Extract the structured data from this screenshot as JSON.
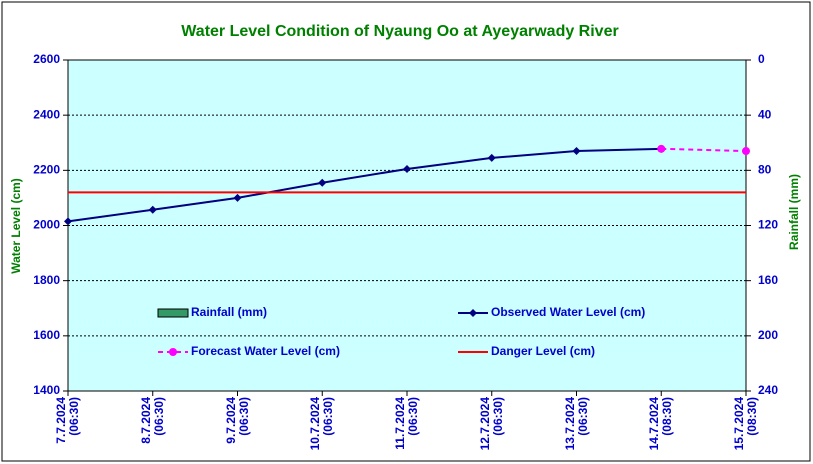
{
  "chart_data": {
    "type": "line",
    "title": "Water Level Condition of Nyaung Oo at Ayeyarwady River",
    "y_label": "Water Level (cm)",
    "y2_label": "Rainfall (mm)",
    "categories": [
      "7.7.2024\n(06:30)",
      "8.7.2024\n(06:30)",
      "9.7.2024\n(06:30)",
      "10.7.2024\n(06:30)",
      "11.7.2024\n(06:30)",
      "12.7.2024\n(06:30)",
      "13.7.2024\n(06:30)",
      "14.7.2024\n(08:30)",
      "15.7.2024\n(08:30)"
    ],
    "series": [
      {
        "name": "Rainfall (mm)",
        "color": "#339966",
        "axis": "y2",
        "kind": "bar",
        "values": [
          null,
          null,
          null,
          null,
          null,
          null,
          null,
          null,
          null
        ]
      },
      {
        "name": "Observed Water Level (cm)",
        "color": "#000080",
        "marker": "diamond",
        "values": [
          2015,
          2057,
          2100,
          2155,
          2205,
          2245,
          2270,
          2278,
          null
        ]
      },
      {
        "name": "Forecast Water Level (cm)",
        "color": "#ff00ff",
        "marker": "circle",
        "dashed": true,
        "values": [
          null,
          null,
          null,
          null,
          null,
          null,
          null,
          2278,
          2270
        ]
      },
      {
        "name": "Danger Level (cm)",
        "color": "#ff0000",
        "values": [
          2120,
          2120,
          2120,
          2120,
          2120,
          2120,
          2120,
          2120,
          2120
        ]
      }
    ],
    "ylim": [
      1400,
      2600
    ],
    "yticks": [
      1400,
      1600,
      1800,
      2000,
      2200,
      2400,
      2600
    ],
    "y2lim": [
      0,
      240
    ],
    "y2ticks": [
      0,
      40,
      80,
      120,
      160,
      200,
      240
    ],
    "y2_inverted": true,
    "grid": true,
    "legend": "inside"
  }
}
